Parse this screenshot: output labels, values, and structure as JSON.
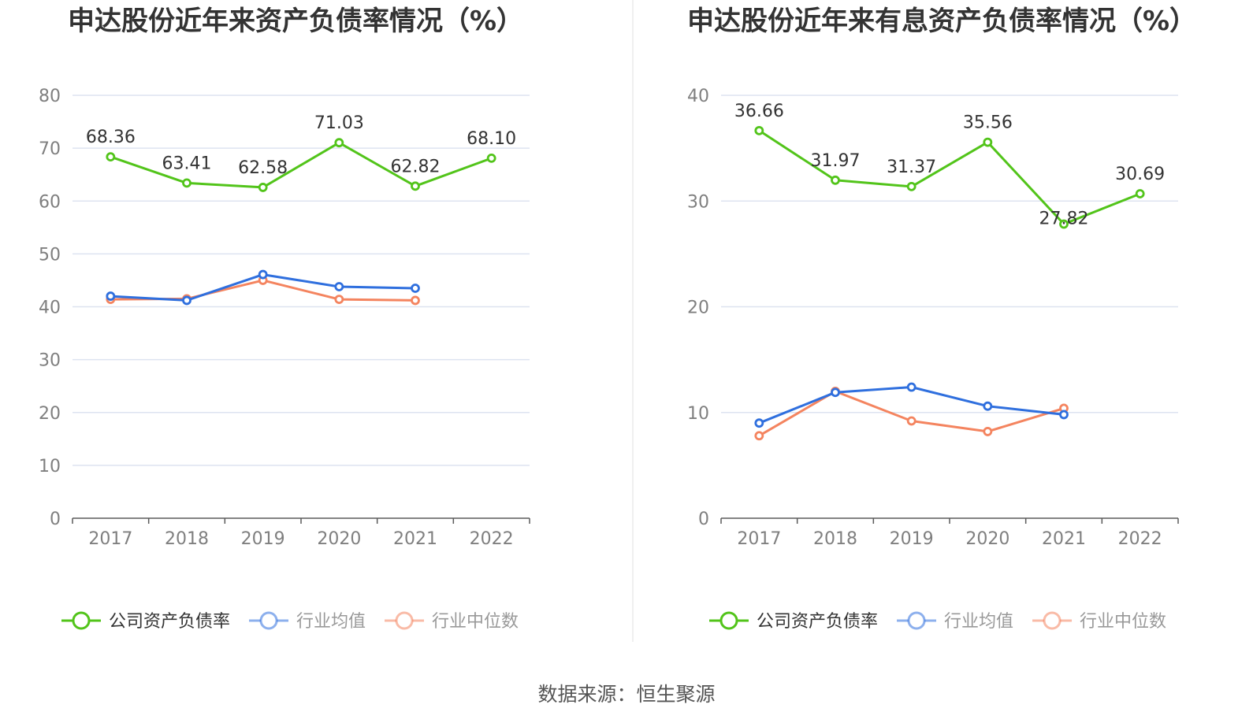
{
  "source_text": "数据来源：恒生聚源",
  "legend": [
    "公司资产负债率",
    "行业均值",
    "行业中位数"
  ],
  "colors": {
    "company": "#52c41a",
    "average": "#2f6fde",
    "median": "#f4845f",
    "legend_inactive_text": "#999999",
    "legend_active_text": "#333333",
    "grid": "#dde3f0",
    "axis": "#5a5a5a"
  },
  "chart_data": [
    {
      "type": "line",
      "title": "申达股份近年来资产负债率情况（%）",
      "categories": [
        "2017",
        "2018",
        "2019",
        "2020",
        "2021",
        "2022"
      ],
      "ylim": [
        0,
        80
      ],
      "yticks": [
        0,
        10,
        20,
        30,
        40,
        50,
        60,
        70,
        80
      ],
      "grid": true,
      "legend_position": "bottom",
      "series": [
        {
          "name": "公司资产负债率",
          "values": [
            68.36,
            63.41,
            62.58,
            71.03,
            62.82,
            68.1
          ],
          "labels": [
            "68.36",
            "63.41",
            "62.58",
            "71.03",
            "62.82",
            "68.10"
          ]
        },
        {
          "name": "行业均值",
          "values": [
            42.0,
            41.2,
            46.1,
            43.8,
            43.5,
            null
          ]
        },
        {
          "name": "行业中位数",
          "values": [
            41.4,
            41.5,
            45.0,
            41.4,
            41.2,
            null
          ]
        }
      ]
    },
    {
      "type": "line",
      "title": "申达股份近年来有息资产负债率情况（%）",
      "categories": [
        "2017",
        "2018",
        "2019",
        "2020",
        "2021",
        "2022"
      ],
      "ylim": [
        0,
        40
      ],
      "yticks": [
        0,
        10,
        20,
        30,
        40
      ],
      "grid": true,
      "legend_position": "bottom",
      "series": [
        {
          "name": "公司资产负债率",
          "values": [
            36.66,
            31.97,
            31.37,
            35.56,
            27.82,
            30.69
          ],
          "labels": [
            "36.66",
            "31.97",
            "31.37",
            "35.56",
            "27.82",
            "30.69"
          ]
        },
        {
          "name": "行业均值",
          "values": [
            9.0,
            11.9,
            12.4,
            10.6,
            9.8,
            null
          ]
        },
        {
          "name": "行业中位数",
          "values": [
            7.8,
            12.0,
            9.2,
            8.2,
            10.4,
            null
          ]
        }
      ]
    }
  ]
}
